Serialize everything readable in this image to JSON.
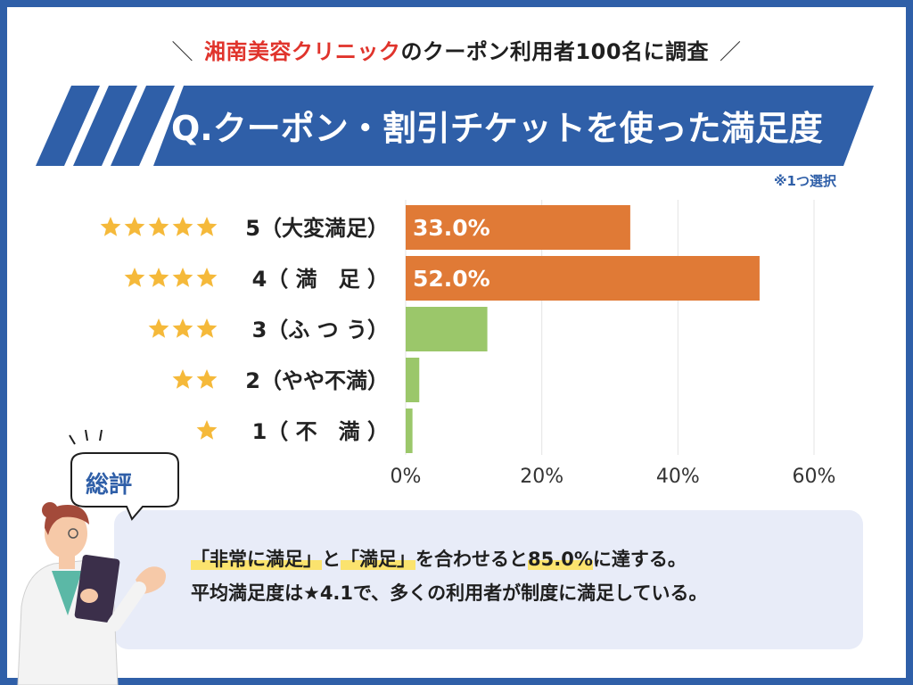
{
  "header": {
    "brand": "湘南美容クリニック",
    "subtitle_rest": "のクーポン利用者100名に調査",
    "slash_left": "＼",
    "slash_right": "／"
  },
  "question": {
    "title": "Q.クーポン・割引チケットを使った満足度",
    "note": "※1つ選択"
  },
  "colors": {
    "banner": "#2f5fa8",
    "bar_high": "#e07a36",
    "bar_low": "#9bc76a",
    "star": "#f5b93a",
    "highlight": "#fbe36e"
  },
  "chart_data": {
    "type": "bar",
    "orientation": "horizontal",
    "categories": [
      "5（大変満足）",
      "4（ 満　足 ）",
      "3（ふ つ う）",
      "2（やや不満）",
      "1（ 不　満 ）"
    ],
    "stars": [
      5,
      4,
      3,
      2,
      1
    ],
    "values": [
      33.0,
      52.0,
      12.0,
      2.0,
      1.0
    ],
    "value_labels": [
      "33.0%",
      "52.0%",
      "",
      "",
      ""
    ],
    "xlim": [
      0,
      60
    ],
    "xticks": [
      "0%",
      "20%",
      "40%",
      "60%"
    ],
    "grid": true,
    "highlight_categories": [
      "5（大変満足）",
      "4（ 満　足 ）"
    ]
  },
  "summary": {
    "label": "総評",
    "line1_hl1": "「非常に満足」",
    "line1_mid": "と",
    "line1_hl2": "「満足」",
    "line1_mid2": "を合わせると",
    "line1_hl3": "85.0%",
    "line1_end": "に達する。",
    "line2": "平均満足度は★4.1で、多くの利用者が制度に満足している。"
  }
}
